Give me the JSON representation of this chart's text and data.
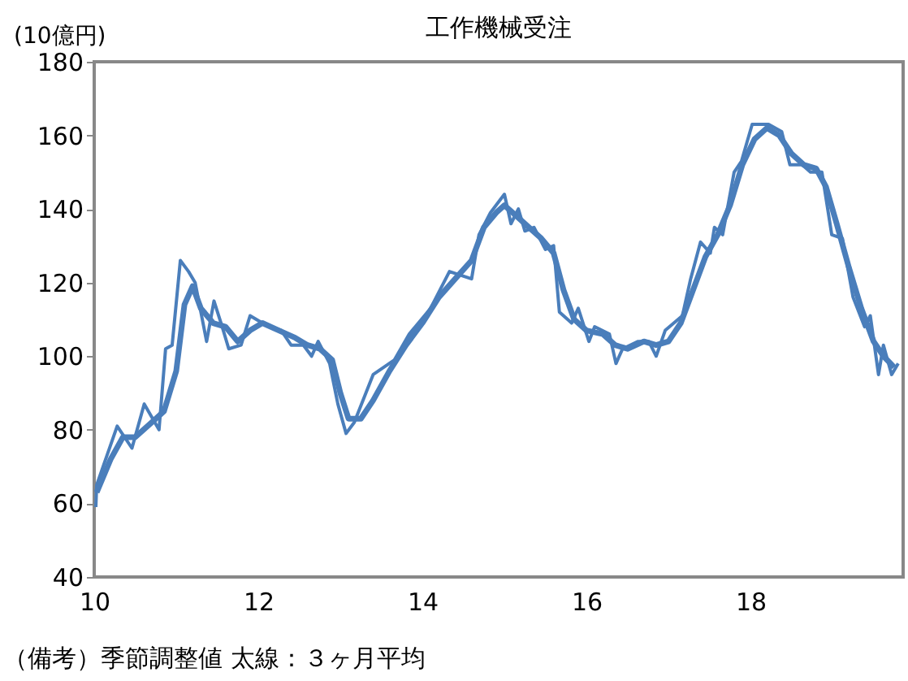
{
  "chart_data": {
    "type": "line",
    "title": "工作機械受注",
    "ylabel": "(10億円)",
    "annotations": [
      "（備考）季節調整値 太線：３ヶ月平均"
    ],
    "xlim": [
      10,
      19.86
    ],
    "xticks": [
      10,
      12,
      14,
      16,
      18
    ],
    "ylim": [
      40,
      180
    ],
    "yticks": [
      40,
      60,
      80,
      100,
      120,
      140,
      160,
      180
    ],
    "grid": false,
    "marker": "none",
    "line_style": "solid",
    "series": [
      {
        "color": "#4a7ebb",
        "x": [
          10.02,
          10.03,
          10.28,
          10.46,
          10.61,
          10.79,
          10.87,
          10.95,
          11.05,
          11.15,
          11.23,
          11.37,
          11.46,
          11.56,
          11.64,
          11.79,
          11.9,
          12.05,
          12.28,
          12.4,
          12.55,
          12.65,
          12.73,
          12.87,
          12.97,
          13.07,
          13.17,
          13.4,
          13.66,
          13.84,
          14.1,
          14.33,
          14.6,
          14.69,
          14.83,
          15.0,
          15.08,
          15.17,
          15.25,
          15.36,
          15.5,
          15.6,
          15.67,
          15.82,
          15.9,
          16.03,
          16.1,
          16.28,
          16.36,
          16.44,
          16.63,
          16.76,
          16.85,
          16.96,
          17.17,
          17.27,
          17.39,
          17.51,
          17.56,
          17.66,
          17.8,
          17.89,
          18.02,
          18.22,
          18.38,
          18.48,
          18.63,
          18.73,
          18.87,
          18.99,
          19.12,
          19.25,
          19.39,
          19.46,
          19.56,
          19.62,
          19.72,
          19.8
        ],
        "values": [
          59,
          65,
          81,
          75,
          87,
          80,
          102,
          103,
          126,
          123,
          120,
          104,
          115,
          108,
          102,
          103,
          111,
          109,
          107,
          103,
          103,
          100,
          104,
          98,
          87,
          79,
          82,
          95,
          99,
          106,
          113,
          123,
          121,
          133,
          139,
          144,
          136,
          140,
          134,
          135,
          129,
          130,
          112,
          109,
          113,
          104,
          108,
          106,
          98,
          102,
          104,
          104,
          100,
          107,
          111,
          121,
          131,
          128,
          135,
          133,
          150,
          153,
          163,
          163,
          161,
          152,
          152,
          150,
          150,
          133,
          132,
          116,
          108,
          111,
          95,
          103,
          95,
          98
        ]
      },
      {
        "color": "#4a7ebb",
        "x": [
          10.03,
          10.2,
          10.35,
          10.5,
          10.7,
          10.85,
          11.0,
          11.1,
          11.2,
          11.3,
          11.45,
          11.6,
          11.75,
          11.9,
          12.05,
          12.25,
          12.45,
          12.6,
          12.75,
          12.9,
          13.0,
          13.1,
          13.25,
          13.4,
          13.6,
          13.8,
          14.0,
          14.2,
          14.4,
          14.6,
          14.75,
          14.9,
          15.0,
          15.15,
          15.3,
          15.45,
          15.6,
          15.72,
          15.85,
          16.0,
          16.2,
          16.35,
          16.5,
          16.7,
          16.85,
          17.0,
          17.15,
          17.3,
          17.45,
          17.6,
          17.75,
          17.9,
          18.05,
          18.2,
          18.35,
          18.5,
          18.65,
          18.8,
          18.92,
          19.05,
          19.2,
          19.35,
          19.5,
          19.62,
          19.75
        ],
        "values": [
          63,
          72,
          78,
          78,
          82,
          85,
          96,
          114,
          119,
          113,
          109,
          108,
          104,
          107,
          109,
          107,
          105,
          103,
          102,
          99,
          90,
          83,
          83,
          88,
          96,
          103,
          109,
          116,
          121,
          126,
          135,
          139,
          141,
          138,
          135,
          132,
          128,
          118,
          110,
          107,
          106,
          103,
          102,
          104,
          103,
          104,
          109,
          118,
          127,
          133,
          141,
          152,
          159,
          162,
          160,
          155,
          152,
          151,
          146,
          136,
          124,
          113,
          104,
          100,
          97
        ]
      }
    ]
  }
}
